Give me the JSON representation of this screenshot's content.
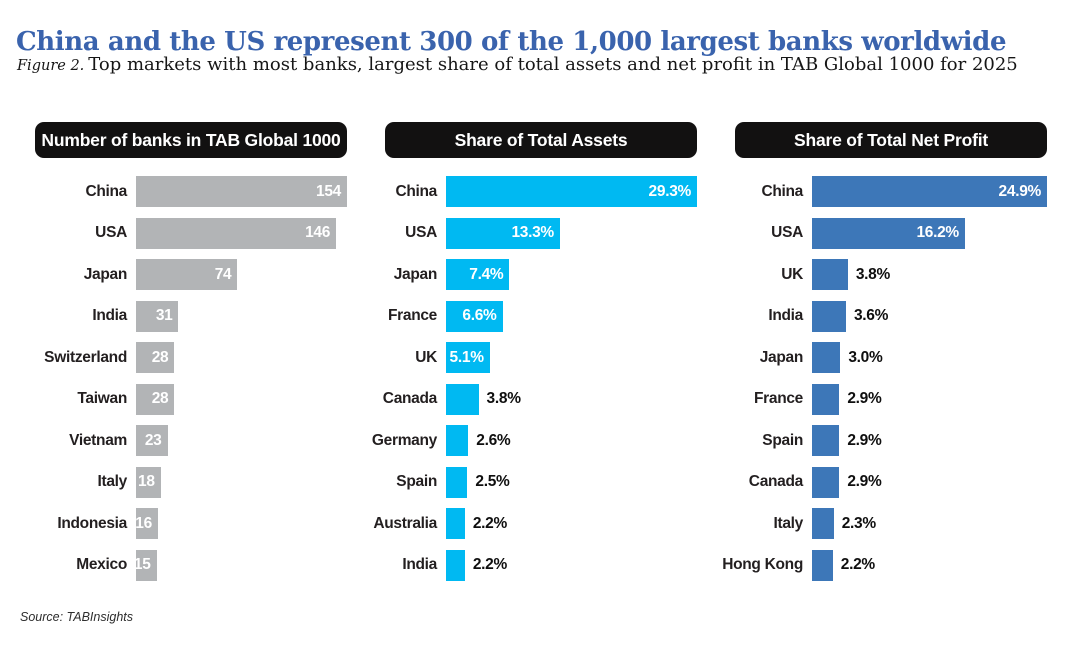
{
  "page": {
    "title": "China and the US represent 300 of the 1,000 largest banks worldwide",
    "figure_label": "Figure 2.",
    "subtitle": "Top markets with most banks, largest share of total assets and net profit in TAB Global 1000 for 2025",
    "source": "Source: TABInsights"
  },
  "colors": {
    "title_blue": "#3a63ad",
    "header_bg": "#121111",
    "banks_bar_gray": "#b2b4b6",
    "assets_bar_cyan": "#00b9f2",
    "profit_bar_blue": "#3d77b8",
    "category_text": "#231f20",
    "value_inside_text": "#ffffff",
    "value_outside_text": "#0f0f0f"
  },
  "chart_data": [
    {
      "type": "bar",
      "orientation": "horizontal",
      "title": "Number of banks in TAB Global 1000",
      "bar_color": "#b2b4b6",
      "xlim": [
        0,
        154
      ],
      "grid": false,
      "legend": false,
      "categories": [
        "China",
        "USA",
        "Japan",
        "India",
        "Switzerland",
        "Taiwan",
        "Vietnam",
        "Italy",
        "Indonesia",
        "Mexico"
      ],
      "values": [
        154,
        146,
        74,
        31,
        28,
        28,
        23,
        18,
        16,
        15
      ],
      "value_labels": [
        "154",
        "146",
        "74",
        "31",
        "28",
        "28",
        "23",
        "18",
        "16",
        "15"
      ],
      "label_placement": [
        "in",
        "in",
        "in",
        "in",
        "in",
        "in",
        "in",
        "in",
        "in",
        "in"
      ]
    },
    {
      "type": "bar",
      "orientation": "horizontal",
      "title": "Share of Total Assets",
      "bar_color": "#00b9f2",
      "xlim": [
        0,
        29.3
      ],
      "grid": false,
      "legend": false,
      "categories": [
        "China",
        "USA",
        "Japan",
        "France",
        "UK",
        "Canada",
        "Germany",
        "Spain",
        "Australia",
        "India"
      ],
      "values": [
        29.3,
        13.3,
        7.4,
        6.6,
        5.1,
        3.8,
        2.6,
        2.5,
        2.2,
        2.2
      ],
      "value_labels": [
        "29.3%",
        "13.3%",
        "7.4%",
        "6.6%",
        "5.1%",
        "3.8%",
        "2.6%",
        "2.5%",
        "2.2%",
        "2.2%"
      ],
      "label_placement": [
        "in",
        "in",
        "in",
        "in",
        "in",
        "out",
        "out",
        "out",
        "out",
        "out"
      ]
    },
    {
      "type": "bar",
      "orientation": "horizontal",
      "title": "Share of Total Net Profit",
      "bar_color": "#3d77b8",
      "xlim": [
        0,
        24.9
      ],
      "grid": false,
      "legend": false,
      "categories": [
        "China",
        "USA",
        "UK",
        "India",
        "Japan",
        "France",
        "Spain",
        "Canada",
        "Italy",
        "Hong Kong"
      ],
      "values": [
        24.9,
        16.2,
        3.8,
        3.6,
        3.0,
        2.9,
        2.9,
        2.9,
        2.3,
        2.2
      ],
      "value_labels": [
        "24.9%",
        "16.2%",
        "3.8%",
        "3.6%",
        "3.0%",
        "2.9%",
        "2.9%",
        "2.9%",
        "2.3%",
        "2.2%"
      ],
      "label_placement": [
        "in",
        "in",
        "out",
        "out",
        "out",
        "out",
        "out",
        "out",
        "out",
        "out"
      ]
    }
  ]
}
